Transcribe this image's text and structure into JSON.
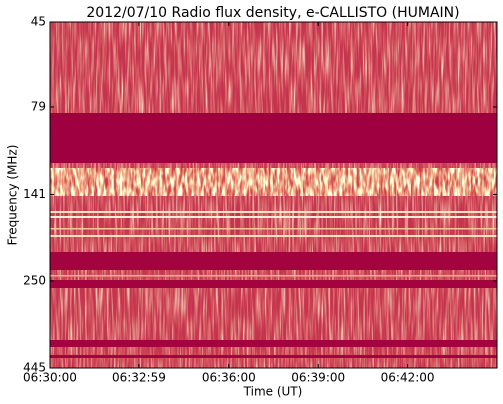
{
  "chart_data": {
    "type": "spectrogram",
    "title": "2012/07/10  Radio flux density, e-CALLISTO (HUMAIN)",
    "x_label": "Time (UT)",
    "y_label": "Frequency (MHz)",
    "xlim": [
      23400,
      24300
    ],
    "xticks": [
      {
        "value": 23400,
        "label": "06:30:00"
      },
      {
        "value": 23579,
        "label": "06:32:59"
      },
      {
        "value": 23760,
        "label": "06:36:00"
      },
      {
        "value": 23940,
        "label": "06:39:00"
      },
      {
        "value": 24120,
        "label": "06:42:00"
      }
    ],
    "ylim": [
      45,
      445
    ],
    "yticks": [
      45,
      79,
      141,
      250,
      445
    ],
    "y_log": true,
    "y_inverted": true,
    "grid": false
  }
}
